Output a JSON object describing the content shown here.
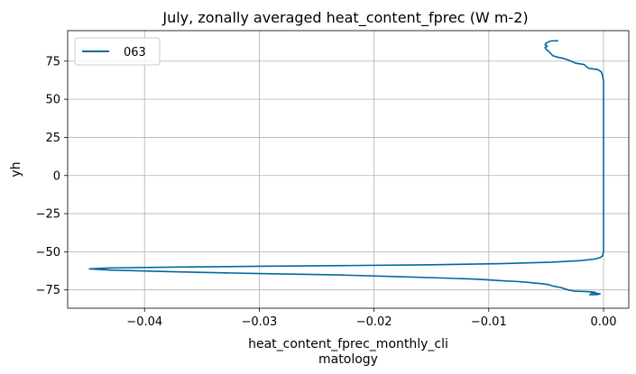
{
  "chart_data": {
    "type": "line",
    "title": "July, zonally averaged heat_content_fprec (W m-2)",
    "xlabel_lines": [
      "heat_content_fprec_monthly_cli",
      "matology"
    ],
    "ylabel": "yh",
    "xlim": [
      -0.0467,
      0.0022
    ],
    "ylim": [
      -87,
      95
    ],
    "x_ticks": [
      -0.04,
      -0.03,
      -0.02,
      -0.01,
      0.0
    ],
    "x_tick_labels": [
      "−0.04",
      "−0.03",
      "−0.02",
      "−0.01",
      "0.00"
    ],
    "y_ticks": [
      -75,
      -50,
      -25,
      0,
      25,
      50,
      75
    ],
    "y_tick_labels": [
      "−75",
      "−50",
      "−25",
      "0",
      "25",
      "50",
      "75"
    ],
    "grid": true,
    "legend_position": "top-left",
    "series": [
      {
        "name": "063",
        "color": "#0068a0",
        "points": [
          [
            -0.0012,
            -78.2
          ],
          [
            -0.0005,
            -78.0
          ],
          [
            -0.0003,
            -77.6
          ],
          [
            -0.0006,
            -77.3
          ],
          [
            -0.0011,
            -77.0
          ],
          [
            -0.0007,
            -76.6
          ],
          [
            -0.0012,
            -76.2
          ],
          [
            -0.0025,
            -75.8
          ],
          [
            -0.0031,
            -75.0
          ],
          [
            -0.0037,
            -73.5
          ],
          [
            -0.0044,
            -72.5
          ],
          [
            -0.0048,
            -71.5
          ],
          [
            -0.0053,
            -71.0
          ],
          [
            -0.006,
            -70.5
          ],
          [
            -0.0067,
            -70.0
          ],
          [
            -0.0075,
            -69.5
          ],
          [
            -0.0088,
            -69.0
          ],
          [
            -0.011,
            -68.0
          ],
          [
            -0.014,
            -67.2
          ],
          [
            -0.018,
            -66.3
          ],
          [
            -0.023,
            -65.2
          ],
          [
            -0.03,
            -64.3
          ],
          [
            -0.037,
            -63.2
          ],
          [
            -0.043,
            -62.0
          ],
          [
            -0.0448,
            -61.2
          ],
          [
            -0.043,
            -60.6
          ],
          [
            -0.037,
            -60.0
          ],
          [
            -0.03,
            -59.5
          ],
          [
            -0.022,
            -59.0
          ],
          [
            -0.015,
            -58.5
          ],
          [
            -0.009,
            -57.8
          ],
          [
            -0.0045,
            -56.8
          ],
          [
            -0.002,
            -55.8
          ],
          [
            -0.0008,
            -54.8
          ],
          [
            -0.0003,
            -53.8
          ],
          [
            -0.0001,
            -52.8
          ],
          [
            0.0,
            -50.0
          ],
          [
            0.0,
            -25.0
          ],
          [
            0.0,
            0.0
          ],
          [
            0.0,
            25.0
          ],
          [
            0.0,
            50.0
          ],
          [
            0.0,
            62.0
          ],
          [
            -0.0001,
            66.0
          ],
          [
            -0.0002,
            68.0
          ],
          [
            -0.0005,
            69.5
          ],
          [
            -0.0013,
            70.3
          ],
          [
            -0.0015,
            71.5
          ],
          [
            -0.0017,
            72.8
          ],
          [
            -0.0024,
            73.6
          ],
          [
            -0.003,
            75.5
          ],
          [
            -0.0035,
            76.8
          ],
          [
            -0.004,
            77.6
          ],
          [
            -0.0044,
            78.5
          ],
          [
            -0.0046,
            80.0
          ],
          [
            -0.0048,
            81.5
          ],
          [
            -0.005,
            82.8
          ],
          [
            -0.0051,
            84.0
          ],
          [
            -0.0049,
            84.8
          ],
          [
            -0.0051,
            85.8
          ],
          [
            -0.005,
            86.8
          ],
          [
            -0.0048,
            87.6
          ],
          [
            -0.0046,
            88.2
          ],
          [
            -0.004,
            88.4
          ]
        ]
      }
    ]
  }
}
